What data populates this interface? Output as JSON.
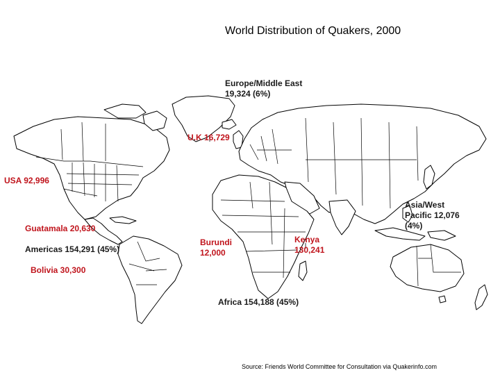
{
  "title": "World Distribution of Quakers, 2000",
  "source": "Source: Friends World Committee for Consultation via Quakerinfo.com",
  "colors": {
    "country_label": "#c0141c",
    "region_label": "#1a1a1a",
    "land_fill": "#ffffff",
    "border": "#000000"
  },
  "labels": {
    "europe": "Europe/Middle East 19,324 (6%)",
    "uk": "U.K 16,729",
    "usa": "USA 92,996",
    "guatamala": "Guatamala 20,630",
    "americas": "Americas 154,291 (45%)",
    "bolivia": "Bolivia 30,300",
    "burundi": "Burundi 12,000",
    "kenya": "Kenya 130,241",
    "asia": "Asia/West Pacific 12,076 (4%)",
    "africa": "Africa 154,188 (45%)"
  }
}
